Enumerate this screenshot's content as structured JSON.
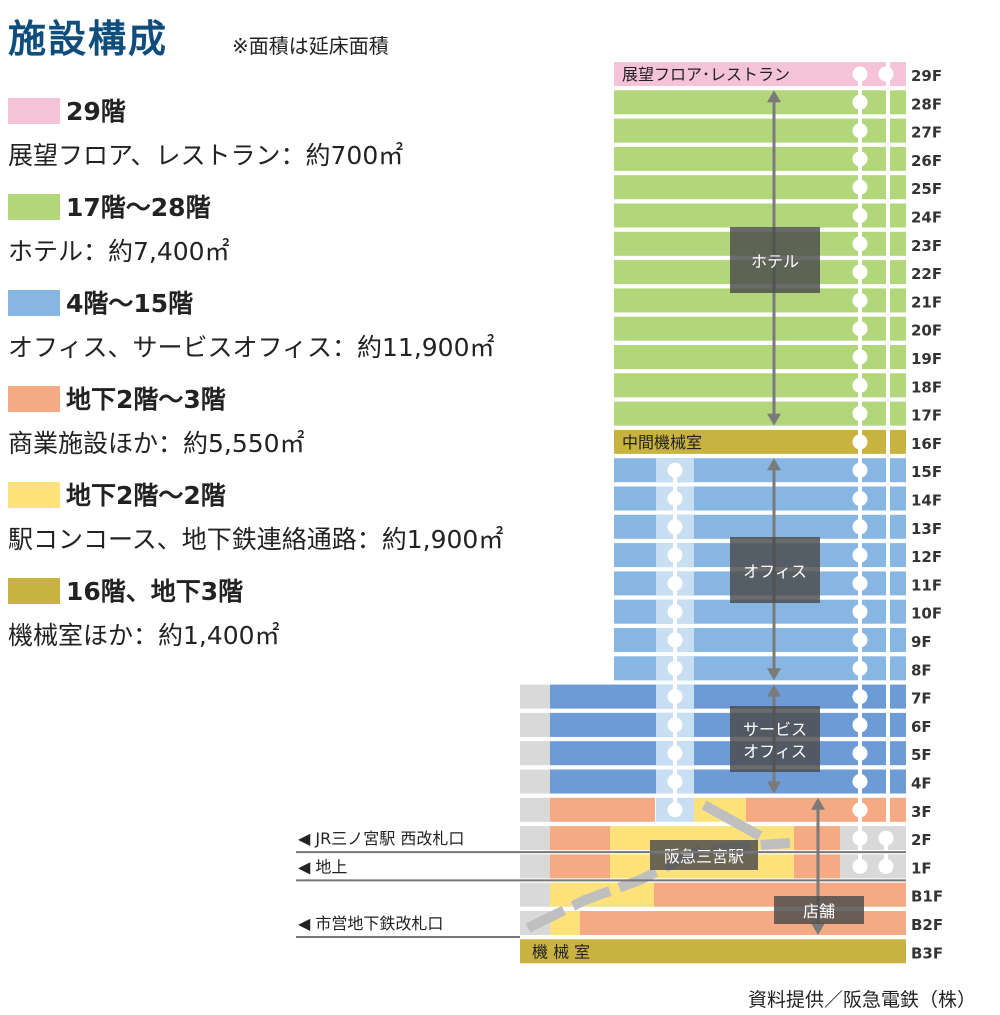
{
  "title": "施設構成",
  "note": "※面積は延床面積",
  "legend": [
    {
      "heading": "29階",
      "desc": "展望フロア、レストラン：約700㎡",
      "color": "#f5c3d8"
    },
    {
      "heading": "17階〜28階",
      "desc": "ホテル：約7,400㎡",
      "color": "#b2d67a"
    },
    {
      "heading": "4階〜15階",
      "desc": "オフィス、サービスオフィス：約11,900㎡",
      "color": "#87b6e2"
    },
    {
      "heading": "地下2階〜3階",
      "desc": "商業施設ほか：約5,550㎡",
      "color": "#f5aa83"
    },
    {
      "heading": "地下2階〜2階",
      "desc": "駅コンコース、地下鉄連絡通路：約1,900㎡",
      "color": "#fde27a"
    },
    {
      "heading": "16階、地下3階",
      "desc": "機械室ほか：約1,400㎡",
      "color": "#c8b240"
    }
  ],
  "floors": [
    "29F",
    "28F",
    "27F",
    "26F",
    "25F",
    "24F",
    "23F",
    "22F",
    "21F",
    "20F",
    "19F",
    "18F",
    "17F",
    "16F",
    "15F",
    "14F",
    "13F",
    "12F",
    "11F",
    "10F",
    "9F",
    "8F",
    "7F",
    "6F",
    "5F",
    "4F",
    "3F",
    "2F",
    "1F",
    "B1F",
    "B2F",
    "B3F"
  ],
  "labels": {
    "observation": "展望フロア･レストラン",
    "hotel": "ホテル",
    "mech_mid": "中間機械室",
    "office": "オフィス",
    "service_office": "サービス\nオフィス",
    "station": "阪急三宮駅",
    "shop": "店舗",
    "mech_b3": "機 械 室"
  },
  "exits": [
    "◀ JR三ノ宮駅 西改札口",
    "◀ 地上",
    "◀ 市営地下鉄改札口"
  ],
  "credit": "資料提供／阪急電鉄（株）",
  "colors": {
    "pink": "#f5c3d8",
    "green": "#b2d67a",
    "office_light": "#87b6e2",
    "office_dark": "#6c9bd5",
    "orange": "#f5aa83",
    "yellow": "#fde27a",
    "mech": "#c8b240",
    "gray": "#d9d9d9",
    "shaft": "#c8def3",
    "dark_box": "#4a4a4a"
  }
}
